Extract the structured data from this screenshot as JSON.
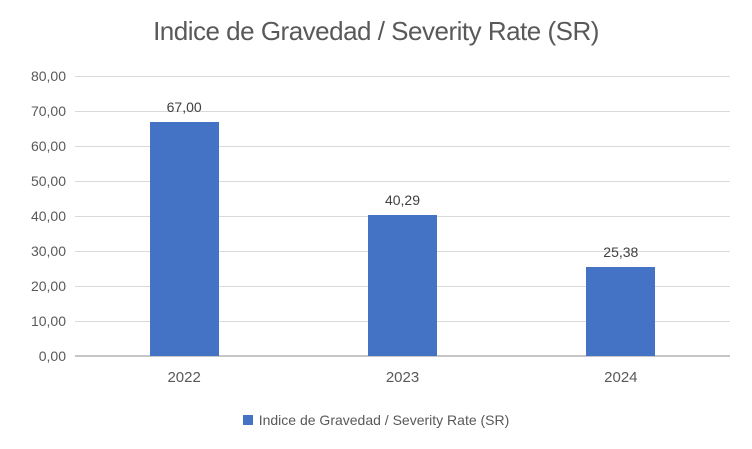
{
  "chart_data": {
    "type": "bar",
    "title": "Indice de Gravedad / Severity Rate (SR)",
    "categories": [
      "2022",
      "2023",
      "2024"
    ],
    "series": [
      {
        "name": "Indice de Gravedad / Severity Rate (SR)",
        "values": [
          67.0,
          40.29,
          25.38
        ],
        "value_labels": [
          "67,00",
          "40,29",
          "25,38"
        ]
      }
    ],
    "ylim": [
      0,
      80
    ],
    "ytick_step": 10,
    "ytick_labels_top_to_bottom": [
      "80,00",
      "70,00",
      "60,00",
      "50,00",
      "40,00",
      "30,00",
      "20,00",
      "10,00",
      "0,00"
    ],
    "grid": true,
    "legend_position": "bottom",
    "xlabel": "",
    "ylabel": ""
  },
  "colors": {
    "bar": "#4472C4",
    "title_text": "#595959",
    "axis_text": "#595959",
    "data_label_text": "#404040",
    "gridline": "#d9d9d9",
    "axis_line": "#c6c6c6",
    "background": "#ffffff"
  }
}
